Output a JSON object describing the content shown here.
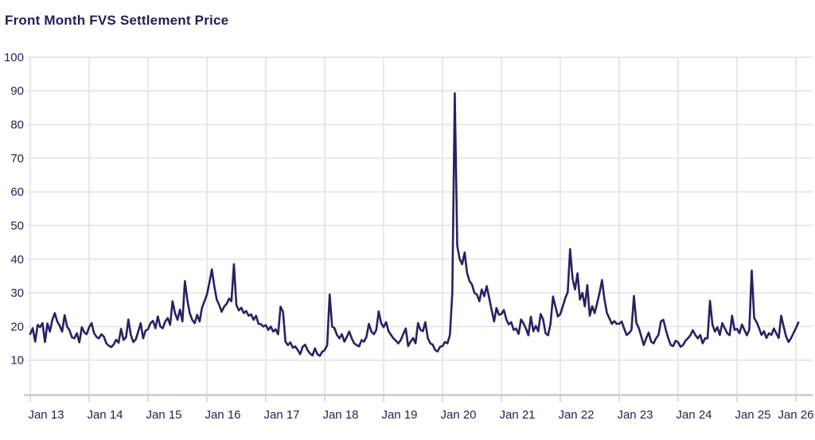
{
  "header": {
    "title": "Front Month FVS Settlement Price"
  },
  "colors": {
    "line": "#292163",
    "title_text": "#221d54",
    "axis_text": "#241f55",
    "gridline": "#e3e3e3",
    "axis_line": "#d2d2d2",
    "background": "#ffffff"
  },
  "chart_data": {
    "type": "line",
    "title": "Front Month FVS Settlement Price",
    "series_name": "Front Month FVS Settlement Price",
    "xlabel": "",
    "ylabel": "",
    "grid": true,
    "legend_position": "none",
    "ylim": [
      0,
      100
    ],
    "y_ticks": [
      10,
      20,
      30,
      40,
      50,
      60,
      70,
      80,
      90,
      100
    ],
    "x_tick_labels": [
      "Jan 13",
      "Jan 14",
      "Jan 15",
      "Jan 16",
      "Jan 17",
      "Jan 18",
      "Jan 19",
      "Jan 20",
      "Jan 21",
      "Jan 22",
      "Jan 23",
      "Jan 24",
      "Jan 25",
      "Jan 26"
    ],
    "x_tick_years": [
      2013,
      2014,
      2015,
      2016,
      2017,
      2018,
      2019,
      2020,
      2021,
      2022,
      2023,
      2024,
      2025,
      2026
    ],
    "x_start_year": 2013.0,
    "x_step_years": 0.0416667,
    "values": [
      17.8,
      19.5,
      15.5,
      20.5,
      19.8,
      21.0,
      15.4,
      20.9,
      18.5,
      22.0,
      24.0,
      21.5,
      20.2,
      18.5,
      23.4,
      20.0,
      18.9,
      16.8,
      16.5,
      18.0,
      15.3,
      19.8,
      18.3,
      17.7,
      19.8,
      21.0,
      18.0,
      16.9,
      16.5,
      17.7,
      17.0,
      15.0,
      14.3,
      13.9,
      14.6,
      16.1,
      15.2,
      19.3,
      16.0,
      16.8,
      22.1,
      17.5,
      15.4,
      16.2,
      18.5,
      21.0,
      16.5,
      18.8,
      19.2,
      21.0,
      21.7,
      19.5,
      23.0,
      20.0,
      19.5,
      21.5,
      22.5,
      20.5,
      27.5,
      24.0,
      22.0,
      25.0,
      21.5,
      33.5,
      28.0,
      24.0,
      22.0,
      21.0,
      23.5,
      21.5,
      25.6,
      27.5,
      29.5,
      33.0,
      37.0,
      31.9,
      28.0,
      26.4,
      24.4,
      25.9,
      26.7,
      28.3,
      27.5,
      38.5,
      26.4,
      24.8,
      25.6,
      24.0,
      24.6,
      23.2,
      23.6,
      22.0,
      23.2,
      20.8,
      20.7,
      20.0,
      20.4,
      19.0,
      20.0,
      18.5,
      19.2,
      17.7,
      25.9,
      24.4,
      15.5,
      14.5,
      15.3,
      13.7,
      14.1,
      13.0,
      11.8,
      14.0,
      14.6,
      13.0,
      12.0,
      11.4,
      13.5,
      11.8,
      11.3,
      12.5,
      13.0,
      14.5,
      29.5,
      20.0,
      19.5,
      17.5,
      16.5,
      17.7,
      15.5,
      16.9,
      18.5,
      16.5,
      15.0,
      14.5,
      14.1,
      16.0,
      15.5,
      16.9,
      20.8,
      18.5,
      17.7,
      19.0,
      24.5,
      21.0,
      19.8,
      21.3,
      18.6,
      17.5,
      16.5,
      15.8,
      15.0,
      16.0,
      17.8,
      19.4,
      14.2,
      15.5,
      16.6,
      15.0,
      21.0,
      19.0,
      18.6,
      21.3,
      16.6,
      15.0,
      14.6,
      13.0,
      12.6,
      14.0,
      14.2,
      15.4,
      15.0,
      17.5,
      30.0,
      89.3,
      44.0,
      40.0,
      38.5,
      42.0,
      36.0,
      33.5,
      32.5,
      30.0,
      29.5,
      27.5,
      31.0,
      29.0,
      32.0,
      28.5,
      24.9,
      21.5,
      25.5,
      23.5,
      23.7,
      24.9,
      22.1,
      20.6,
      21.3,
      19.0,
      19.4,
      17.8,
      22.1,
      20.9,
      19.4,
      17.4,
      22.9,
      18.6,
      20.2,
      18.6,
      23.7,
      22.1,
      18.0,
      17.4,
      20.8,
      28.9,
      26.0,
      23.0,
      23.7,
      26.0,
      28.4,
      30.2,
      43.0,
      34.2,
      31.0,
      35.8,
      28.0,
      30.0,
      26.0,
      32.3,
      23.2,
      26.0,
      24.0,
      27.0,
      30.0,
      33.8,
      28.0,
      24.0,
      22.4,
      20.8,
      21.6,
      20.8,
      20.8,
      21.5,
      19.4,
      17.5,
      18.0,
      19.0,
      29.1,
      21.0,
      19.5,
      17.0,
      14.5,
      16.5,
      18.2,
      15.5,
      15.0,
      16.5,
      17.5,
      21.5,
      22.0,
      19.0,
      16.5,
      14.5,
      14.2,
      15.8,
      15.3,
      14.0,
      14.5,
      15.8,
      16.5,
      17.4,
      18.9,
      17.5,
      16.5,
      17.5,
      15.0,
      16.5,
      16.5,
      27.6,
      20.5,
      18.5,
      19.8,
      17.5,
      21.0,
      19.5,
      18.0,
      17.4,
      23.2,
      19.0,
      19.3,
      18.0,
      20.6,
      19.0,
      17.4,
      19.0,
      36.6,
      22.5,
      21.3,
      19.5,
      17.5,
      18.6,
      16.6,
      18.0,
      17.5,
      19.4,
      18.0,
      16.6,
      23.2,
      20.0,
      17.0,
      15.4,
      16.5,
      18.0,
      19.5,
      21.2
    ]
  }
}
